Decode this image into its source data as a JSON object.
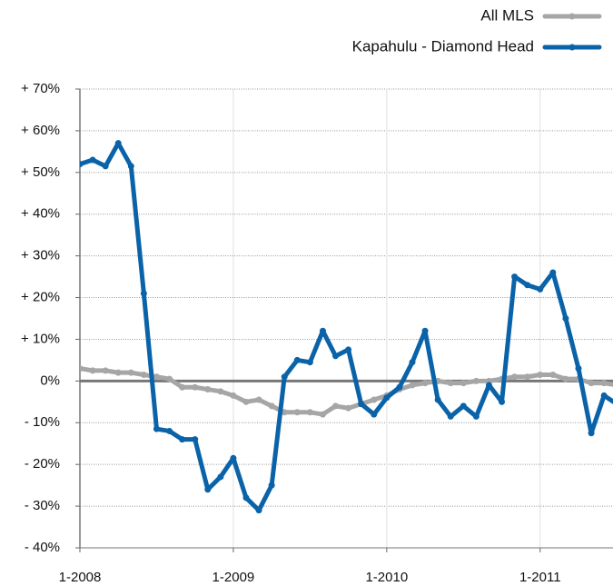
{
  "chart_data": {
    "type": "line",
    "x": [
      0,
      1,
      2,
      3,
      4,
      5,
      6,
      7,
      8,
      9,
      10,
      11,
      12,
      13,
      14,
      15,
      16,
      17,
      18,
      19,
      20,
      21,
      22,
      23,
      24,
      25,
      26,
      27,
      28,
      29,
      30,
      31,
      32,
      33,
      34,
      35,
      36,
      37,
      38,
      39,
      40,
      41,
      42
    ],
    "series": [
      {
        "name": "All MLS",
        "color": "#a6a6a6",
        "values": [
          3,
          2.5,
          2.5,
          2,
          2,
          1.5,
          1,
          0.5,
          -1.5,
          -1.5,
          -2,
          -2.5,
          -3.5,
          -5,
          -4.5,
          -6,
          -7.5,
          -7.5,
          -7.5,
          -8,
          -6,
          -6.5,
          -5.5,
          -4.5,
          -3.5,
          -2,
          -1,
          -0.5,
          0,
          -0.5,
          -0.5,
          0,
          0,
          0.5,
          1,
          1,
          1.5,
          1.5,
          0.5,
          0.5,
          -0.5,
          -0.5,
          -1
        ]
      },
      {
        "name": "Kapahulu - Diamond Head",
        "color": "#0a63a8",
        "values": [
          52,
          53,
          51.5,
          57,
          51.5,
          21,
          -11.5,
          -12,
          -14,
          -14,
          -26,
          -23,
          -18.5,
          -28,
          -31,
          -25,
          1,
          5,
          4.5,
          12,
          6,
          7.5,
          -5.5,
          -8,
          -4,
          -1.5,
          4.5,
          12,
          -4.5,
          -8.5,
          -6,
          -8.5,
          -1,
          -5,
          25,
          23,
          22,
          26,
          15,
          3,
          -12.5,
          -3.5,
          -5.5
        ]
      }
    ],
    "xlim": [
      0,
      41.7
    ],
    "xticks": [
      {
        "value": 0,
        "label": "1-2008"
      },
      {
        "value": 12,
        "label": "1-2009"
      },
      {
        "value": 24,
        "label": "1-2010"
      },
      {
        "value": 36,
        "label": "1-2011"
      }
    ],
    "ylim": [
      -40,
      70
    ],
    "yticks": [
      {
        "value": -40,
        "label": "- 40%"
      },
      {
        "value": -30,
        "label": "- 30%"
      },
      {
        "value": -20,
        "label": "- 20%"
      },
      {
        "value": -10,
        "label": "- 10%"
      },
      {
        "value": 0,
        "label": "0%"
      },
      {
        "value": 10,
        "label": "+ 10%"
      },
      {
        "value": 20,
        "label": "+ 20%"
      },
      {
        "value": 30,
        "label": "+ 30%"
      },
      {
        "value": 40,
        "label": "+ 40%"
      },
      {
        "value": 50,
        "label": "+ 50%"
      },
      {
        "value": 60,
        "label": "+ 60%"
      },
      {
        "value": 70,
        "label": "+ 70%"
      }
    ],
    "grid": true,
    "legend": "top-right"
  }
}
